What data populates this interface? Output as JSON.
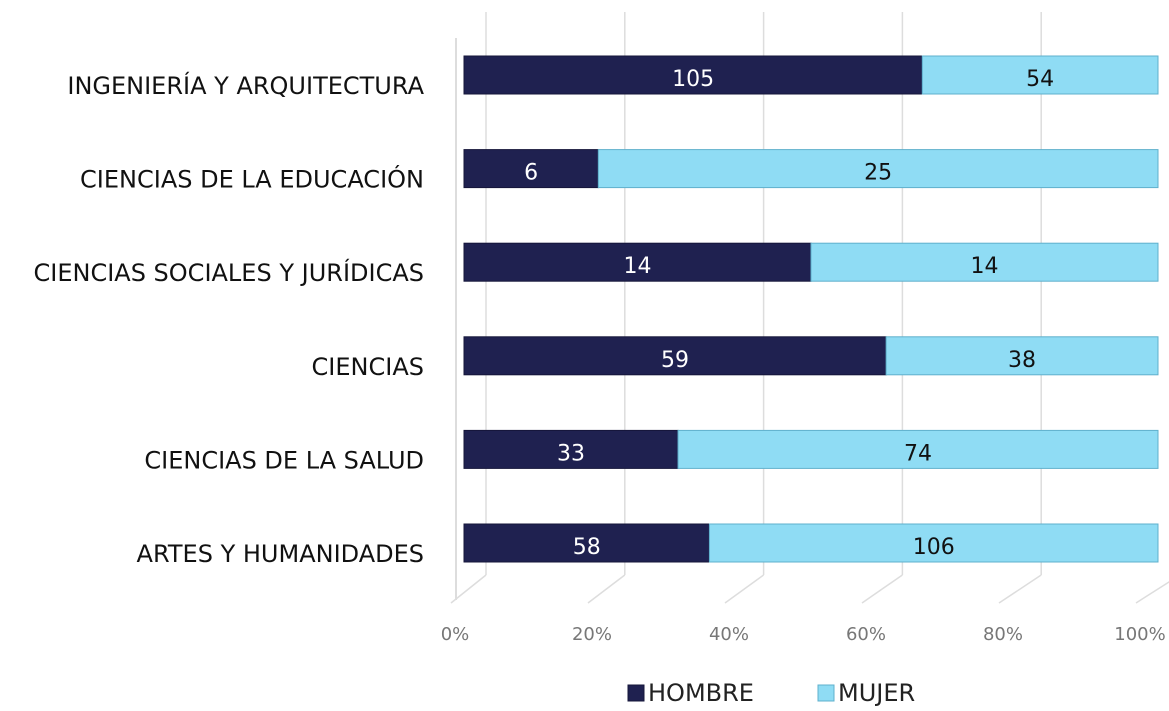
{
  "chart_data": {
    "type": "bar",
    "orientation": "horizontal",
    "stacking": "percent",
    "categories": [
      "INGENIERÍA Y ARQUITECTURA",
      "CIENCIAS DE LA EDUCACIÓN",
      "CIENCIAS SOCIALES Y JURÍDICAS",
      "CIENCIAS",
      "CIENCIAS DE LA SALUD",
      "ARTES Y HUMANIDADES"
    ],
    "series": [
      {
        "name": "HOMBRE",
        "color": "#1f2150",
        "values": [
          105,
          6,
          14,
          59,
          33,
          58
        ]
      },
      {
        "name": "MUJER",
        "color": "#8fdcf4",
        "values": [
          54,
          25,
          14,
          38,
          74,
          106
        ]
      }
    ],
    "xlim": [
      0,
      100
    ],
    "xticks": [
      {
        "value": 0,
        "label": "0%"
      },
      {
        "value": 20,
        "label": "20%"
      },
      {
        "value": 40,
        "label": "40%"
      },
      {
        "value": 60,
        "label": "60%"
      },
      {
        "value": 80,
        "label": "80%"
      },
      {
        "value": 100,
        "label": "100%"
      }
    ],
    "grid": true,
    "legend": "bottom"
  }
}
